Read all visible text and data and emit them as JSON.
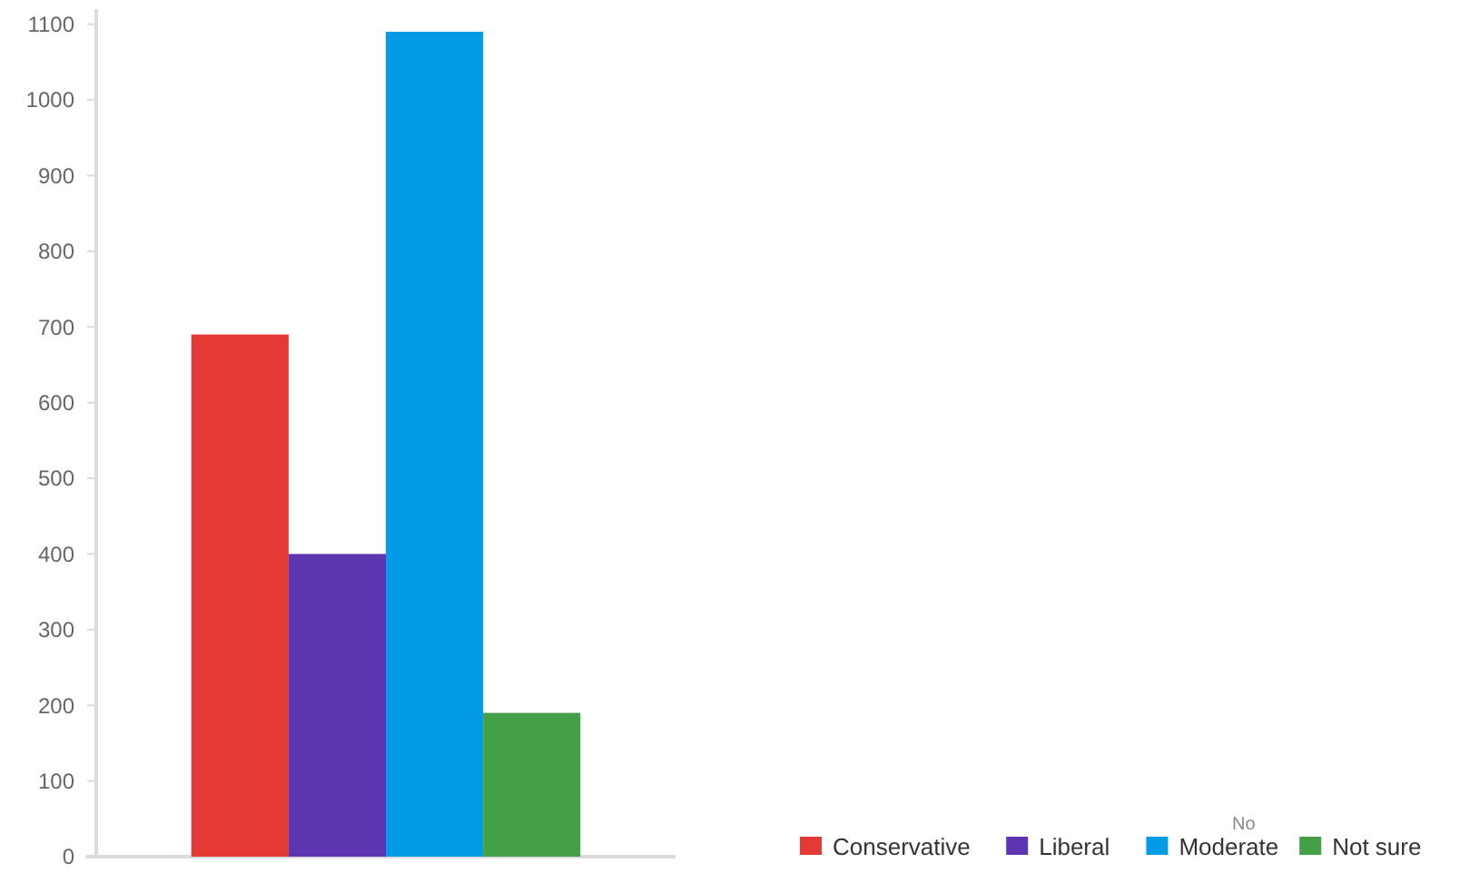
{
  "chart_data": {
    "type": "bar",
    "categories": [
      null
    ],
    "series": [
      {
        "name": "Conservative",
        "color": "#e53935",
        "values": [
          690
        ]
      },
      {
        "name": "Liberal",
        "color": "#5e35b1",
        "values": [
          400
        ]
      },
      {
        "name": "Moderate",
        "color": "#039be5",
        "values": [
          1090
        ]
      },
      {
        "name": "Not sure",
        "color": "#43a047",
        "values": [
          190
        ]
      }
    ],
    "legend_title": "No",
    "ylim": [
      0,
      1120
    ],
    "yticks": [
      0,
      100,
      200,
      300,
      400,
      500,
      600,
      700,
      800,
      900,
      1000,
      1100
    ],
    "grid": false,
    "legend": "bottom right"
  }
}
